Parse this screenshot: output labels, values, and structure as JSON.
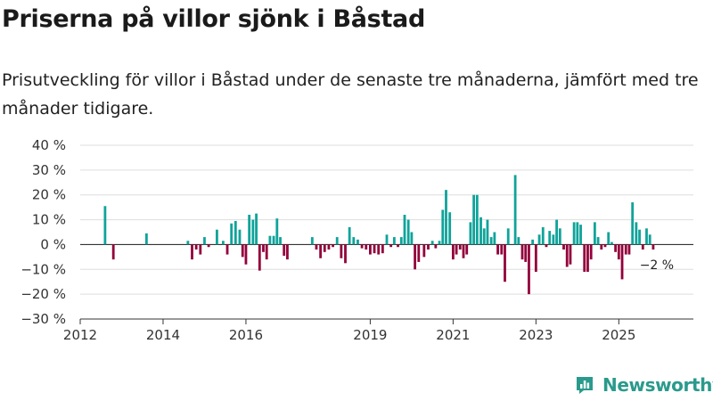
{
  "title": "Priserna på villor sjönk i Båstad",
  "subtitle": "Prisutveckling för villor i Båstad under de senaste tre månaderna, jämfört med tre månader tidigare.",
  "brand": {
    "name": "Newsworthy",
    "color": "#2a9a8c"
  },
  "colors": {
    "positive": "#0fa39a",
    "negative": "#93003a",
    "grid": "#dddddd",
    "axis": "#333333",
    "text": "#333333"
  },
  "chart_data": {
    "type": "bar",
    "title": "Priserna på villor sjönk i Båstad",
    "xlabel": "",
    "ylabel": "",
    "ylim": [
      -30,
      40
    ],
    "yticks": [
      40,
      30,
      20,
      10,
      0,
      -10,
      -20,
      -30
    ],
    "ytick_labels": [
      "40 %",
      "30 %",
      "20 %",
      "10 %",
      "0 %",
      "−10 %",
      "−20 %",
      "−30 %"
    ],
    "xlim": [
      2012.0,
      2026.8
    ],
    "xticks": [
      2012,
      2014,
      2016,
      2019,
      2021,
      2023,
      2025
    ],
    "xtick_labels": [
      "2012",
      "2014",
      "2016",
      "2019",
      "2021",
      "2023",
      "2025"
    ],
    "annotation": {
      "text": "−2 %",
      "x": 2025.83,
      "y": -2
    },
    "x": [
      2012.6,
      2012.8,
      2013.6,
      2014.6,
      2014.7,
      2014.8,
      2014.9,
      2015.0,
      2015.1,
      2015.3,
      2015.45,
      2015.55,
      2015.65,
      2015.75,
      2015.85,
      2015.92,
      2016.0,
      2016.08,
      2016.17,
      2016.25,
      2016.33,
      2016.42,
      2016.5,
      2016.58,
      2016.67,
      2016.75,
      2016.83,
      2016.92,
      2017.0,
      2017.6,
      2017.7,
      2017.8,
      2017.9,
      2018.0,
      2018.1,
      2018.2,
      2018.3,
      2018.4,
      2018.5,
      2018.6,
      2018.7,
      2018.8,
      2018.9,
      2019.0,
      2019.1,
      2019.2,
      2019.3,
      2019.4,
      2019.5,
      2019.58,
      2019.67,
      2019.75,
      2019.83,
      2019.92,
      2020.0,
      2020.08,
      2020.17,
      2020.3,
      2020.4,
      2020.5,
      2020.58,
      2020.67,
      2020.75,
      2020.83,
      2020.92,
      2021.0,
      2021.08,
      2021.17,
      2021.25,
      2021.33,
      2021.42,
      2021.5,
      2021.58,
      2021.67,
      2021.75,
      2021.83,
      2021.92,
      2022.0,
      2022.08,
      2022.17,
      2022.25,
      2022.33,
      2022.5,
      2022.58,
      2022.67,
      2022.75,
      2022.83,
      2022.92,
      2023.0,
      2023.08,
      2023.17,
      2023.25,
      2023.33,
      2023.42,
      2023.5,
      2023.58,
      2023.67,
      2023.75,
      2023.83,
      2023.92,
      2024.0,
      2024.08,
      2024.17,
      2024.25,
      2024.33,
      2024.42,
      2024.5,
      2024.58,
      2024.67,
      2024.75,
      2024.83,
      2024.92,
      2025.0,
      2025.08,
      2025.17,
      2025.25,
      2025.33,
      2025.42,
      2025.5,
      2025.58,
      2025.67,
      2025.75,
      2025.83
    ],
    "values": [
      15.5,
      -6,
      4.5,
      1.5,
      -6,
      -2,
      -4,
      3,
      -1,
      6,
      1.5,
      -4,
      8.5,
      9.5,
      6,
      -5,
      -8,
      12,
      10,
      12.5,
      -10.5,
      -3,
      -6,
      3.5,
      3.5,
      10.5,
      3,
      -4.5,
      -6,
      3,
      -2,
      -5.5,
      -3,
      -2,
      -1,
      3,
      -5.5,
      -7.5,
      7,
      3,
      2,
      -1.5,
      -2,
      -4,
      -3.5,
      -4,
      -3.5,
      4,
      -1,
      3,
      -1,
      3,
      12,
      10,
      5,
      -10,
      -7,
      -5,
      -2,
      1.5,
      -1.5,
      1.5,
      14,
      22,
      13,
      -6,
      -4,
      -2,
      -5.5,
      -4,
      9,
      20,
      20,
      11,
      6.5,
      10,
      3,
      5,
      -4,
      -4,
      -15,
      6.5,
      28,
      3,
      -6,
      -7,
      -20,
      2,
      -11,
      4,
      7,
      -1,
      5.5,
      4,
      10,
      6.5,
      -2,
      -9,
      -8,
      9,
      9,
      8,
      -11,
      -11,
      -6,
      9,
      3,
      -2,
      -1,
      5,
      1,
      -3,
      -6,
      -14,
      -4,
      -4,
      17,
      9,
      6,
      -2,
      6.5,
      4,
      -2
    ]
  }
}
